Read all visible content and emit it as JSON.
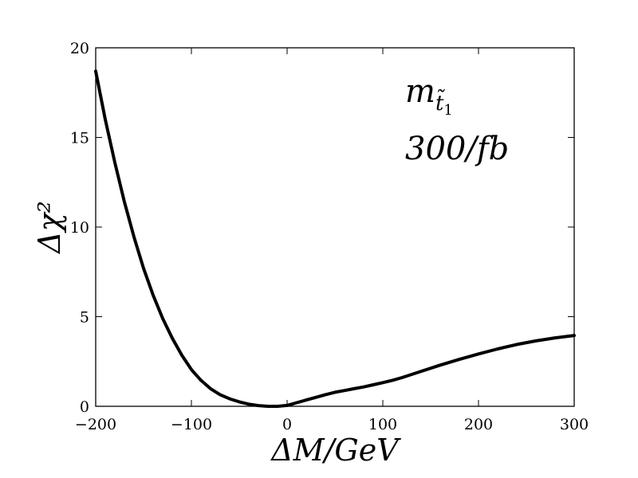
{
  "chart_data": {
    "type": "line",
    "xlabel": "ΔM/GeV",
    "ylabel": "Δχ²",
    "xlim": [
      -200,
      300
    ],
    "ylim": [
      0,
      20
    ],
    "xticks": [
      -200,
      -100,
      0,
      100,
      200,
      300
    ],
    "yticks": [
      0,
      5,
      10,
      15,
      20
    ],
    "xtick_labels": [
      "−200",
      "−100",
      "0",
      "100",
      "200",
      "300"
    ],
    "ytick_labels": [
      "0",
      "5",
      "10",
      "15",
      "20"
    ],
    "annotation": {
      "line1": "m",
      "line1_sub": "t̃",
      "line1_subsub": "1",
      "line2": "300/fb"
    },
    "grid": false,
    "series": [
      {
        "color": "#000000",
        "x": [
          -200,
          -190,
          -180,
          -170,
          -160,
          -150,
          -140,
          -130,
          -120,
          -110,
          -100,
          -90,
          -80,
          -70,
          -60,
          -50,
          -40,
          -30,
          -20,
          -10,
          0,
          10,
          20,
          30,
          40,
          50,
          60,
          70,
          80,
          90,
          100,
          110,
          120,
          140,
          160,
          180,
          200,
          220,
          240,
          260,
          280,
          300
        ],
        "y": [
          18.7,
          16.0,
          13.6,
          11.4,
          9.45,
          7.7,
          6.2,
          4.9,
          3.8,
          2.85,
          2.05,
          1.45,
          0.98,
          0.65,
          0.42,
          0.25,
          0.12,
          0.04,
          0.0,
          0.0,
          0.05,
          0.2,
          0.35,
          0.5,
          0.65,
          0.78,
          0.88,
          0.98,
          1.08,
          1.2,
          1.32,
          1.45,
          1.6,
          1.95,
          2.3,
          2.62,
          2.92,
          3.2,
          3.45,
          3.65,
          3.82,
          3.95
        ]
      }
    ]
  }
}
